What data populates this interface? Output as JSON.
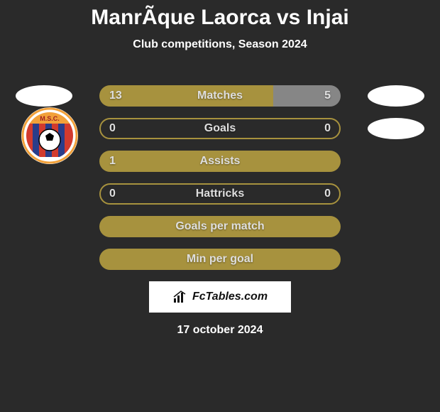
{
  "title": "ManrÃ­que Laorca vs Injai",
  "subtitle": "Club competitions, Season 2024",
  "footer_date": "17 october 2024",
  "branding": {
    "label": "FcTables.com"
  },
  "colors": {
    "background": "#2a2a2a",
    "bar_left": "#a7923e",
    "bar_right": "#868686",
    "bar_full": "#a7923e",
    "bar_outline": "#a7923e",
    "text_on_bar": "#dedede",
    "title_color": "#ffffff",
    "logo_placeholder": "#ffffff"
  },
  "logos": {
    "left_shape_color": "#ffffff",
    "right_shape_color": "#ffffff",
    "club_badge": {
      "bg": "#ffffff",
      "stripe1": "#d23a2e",
      "stripe2": "#2a3d8a",
      "ball_fill": "#ffffff",
      "ball_stroke": "#000000",
      "border": "#f2a13a",
      "text": "M.S.C."
    }
  },
  "rows": [
    {
      "label": "Matches",
      "left_value": "13",
      "right_value": "5",
      "left_pct": 72,
      "right_pct": 28,
      "left_color": "#a7923e",
      "right_color": "#868686",
      "show_left_logo": true,
      "show_right_logo": true,
      "show_club_badge": false,
      "mode": "split"
    },
    {
      "label": "Goals",
      "left_value": "0",
      "right_value": "0",
      "left_pct": 50,
      "right_pct": 50,
      "left_color": "#a7923e",
      "right_color": "#a7923e",
      "show_left_logo": false,
      "show_right_logo": true,
      "show_club_badge": true,
      "mode": "outline"
    },
    {
      "label": "Assists",
      "left_value": "1",
      "right_value": "",
      "left_pct": 100,
      "right_pct": 0,
      "left_color": "#a7923e",
      "right_color": "#868686",
      "show_left_logo": false,
      "show_right_logo": false,
      "show_club_badge": false,
      "mode": "full"
    },
    {
      "label": "Hattricks",
      "left_value": "0",
      "right_value": "0",
      "left_pct": 50,
      "right_pct": 50,
      "left_color": "#a7923e",
      "right_color": "#a7923e",
      "show_left_logo": false,
      "show_right_logo": false,
      "show_club_badge": false,
      "mode": "outline"
    },
    {
      "label": "Goals per match",
      "left_value": "",
      "right_value": "",
      "left_pct": 100,
      "right_pct": 0,
      "left_color": "#a7923e",
      "right_color": "#868686",
      "show_left_logo": false,
      "show_right_logo": false,
      "show_club_badge": false,
      "mode": "full"
    },
    {
      "label": "Min per goal",
      "left_value": "",
      "right_value": "",
      "left_pct": 100,
      "right_pct": 0,
      "left_color": "#a7923e",
      "right_color": "#868686",
      "show_left_logo": false,
      "show_right_logo": false,
      "show_club_badge": false,
      "mode": "full"
    }
  ]
}
